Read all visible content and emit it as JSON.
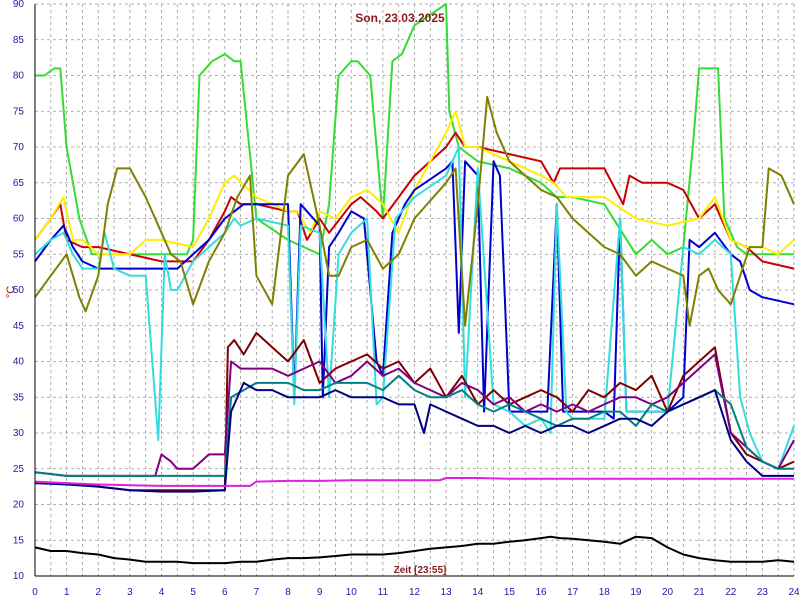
{
  "chart_data": {
    "type": "line",
    "title": "Son, 23.03.2025",
    "xlabel": "Zeit [23:55]",
    "ylabel": "°C",
    "xlim": [
      0,
      24
    ],
    "ylim": [
      10,
      90
    ],
    "xticks": [
      "0",
      "1",
      "2",
      "3",
      "4",
      "5",
      "6",
      "7",
      "8",
      "9",
      "10",
      "11",
      "12",
      "13",
      "14",
      "15",
      "16",
      "17",
      "18",
      "19",
      "20",
      "21",
      "22",
      "23",
      "24"
    ],
    "yticks": [
      "10",
      "15",
      "20",
      "25",
      "30",
      "35",
      "40",
      "45",
      "50",
      "55",
      "60",
      "65",
      "70",
      "75",
      "80",
      "85",
      "90"
    ],
    "grid": true,
    "series": [
      {
        "color": "#33dd33",
        "x": [
          0,
          0.3,
          0.6,
          0.8,
          1.0,
          1.4,
          1.8,
          2.0,
          2.5,
          3,
          4,
          4.8,
          5.0,
          5.2,
          5.6,
          6.0,
          6.3,
          6.5,
          7.0,
          8,
          9,
          9.3,
          9.6,
          10,
          10.2,
          10.6,
          11.0,
          11.3,
          11.6,
          12,
          13,
          13.1,
          13.4,
          14,
          15,
          15.5,
          16,
          16.5,
          17,
          18,
          19,
          19.5,
          20,
          20.5,
          20.8,
          21,
          21.6,
          21.8,
          22.2,
          22.5,
          23,
          23.5,
          24
        ],
        "y": [
          80,
          80,
          81,
          81,
          70,
          60,
          55,
          55,
          55,
          55,
          55,
          55,
          57,
          80,
          82,
          83,
          82,
          82,
          60,
          57,
          55,
          62,
          80,
          82,
          82,
          80,
          60,
          82,
          83,
          87,
          90,
          75,
          70,
          68,
          67,
          66,
          65,
          63,
          63,
          62,
          55,
          57,
          55,
          56,
          70,
          81,
          81,
          60,
          56,
          55,
          55,
          55,
          55
        ]
      },
      {
        "color": "#cc0000",
        "x": [
          0,
          0.5,
          0.8,
          1.0,
          1.5,
          2,
          3,
          4,
          5,
          5.5,
          6,
          6.2,
          6.5,
          7,
          8,
          8.3,
          8.6,
          9,
          9.3,
          10,
          10.3,
          10.8,
          11,
          11.5,
          12,
          13,
          13.3,
          13.6,
          14,
          15,
          16,
          16.4,
          16.6,
          17,
          18,
          18.6,
          18.8,
          19.2,
          20,
          20.5,
          21,
          21.5,
          22,
          22.5,
          23,
          24
        ],
        "y": [
          57,
          60,
          62,
          57,
          56,
          56,
          55,
          54,
          54,
          57,
          61,
          63,
          62,
          62,
          61,
          61,
          57,
          60,
          58,
          62,
          63,
          61,
          60,
          63,
          66,
          70,
          72,
          70,
          70,
          69,
          68,
          65,
          67,
          67,
          67,
          62,
          66,
          65,
          65,
          64,
          60,
          62,
          57,
          56,
          54,
          53
        ]
      },
      {
        "color": "#ffee00",
        "x": [
          0,
          0.5,
          0.9,
          1.2,
          1.5,
          2,
          3,
          3.5,
          4,
          5,
          5.5,
          6,
          6.3,
          7,
          8,
          8.3,
          8.7,
          9,
          9.5,
          10,
          10.5,
          11,
          11.5,
          12,
          12.5,
          13,
          13.3,
          13.6,
          14,
          15,
          16,
          16.4,
          16.8,
          17,
          18,
          19,
          20,
          21,
          21.5,
          22,
          22.5,
          23,
          23.5,
          24
        ],
        "y": [
          57,
          60,
          63,
          57,
          57,
          55,
          55,
          57,
          57,
          56,
          60,
          65,
          66,
          63,
          61,
          61,
          58,
          61,
          60,
          63,
          64,
          62,
          58,
          64,
          68,
          72,
          75,
          70,
          70,
          68,
          66,
          65,
          63,
          63,
          63,
          60,
          59,
          60,
          63,
          57,
          56,
          56,
          55,
          57
        ]
      },
      {
        "color": "#0000cc",
        "x": [
          0,
          0.5,
          0.9,
          1.2,
          1.5,
          2,
          3,
          4,
          4.5,
          5,
          5.5,
          6,
          6.3,
          6.6,
          7,
          7.5,
          8,
          8.2,
          8.4,
          9,
          9.1,
          9.3,
          9.6,
          10,
          10.4,
          10.8,
          11,
          11.3,
          11.7,
          12,
          13,
          13.2,
          13.4,
          13.6,
          14,
          14.2,
          14.5,
          14.7,
          15,
          15.5,
          16,
          16.2,
          16.5,
          16.7,
          17,
          17.5,
          18,
          18.3,
          18.5,
          18.7,
          19,
          19.5,
          20,
          20.5,
          20.7,
          21,
          21.5,
          22,
          22.3,
          22.6,
          23,
          24
        ],
        "y": [
          54,
          57,
          59,
          56,
          54,
          53,
          53,
          53,
          53,
          55,
          57,
          60,
          61,
          62,
          62,
          62,
          62,
          35,
          62,
          59,
          35,
          56,
          58,
          61,
          60,
          40,
          38,
          58,
          62,
          64,
          67,
          68,
          44,
          68,
          66,
          33,
          68,
          66,
          33,
          33,
          33,
          33,
          62,
          33,
          33,
          33,
          33,
          32,
          60,
          33,
          33,
          33,
          33,
          35,
          57,
          56,
          58,
          55,
          54,
          50,
          49,
          48
        ]
      },
      {
        "color": "#33dddd",
        "x": [
          0,
          0.5,
          0.9,
          1.2,
          1.5,
          2,
          2.2,
          2.5,
          3,
          3.5,
          3.9,
          4.1,
          4.3,
          4.5,
          5,
          5.5,
          6,
          6.3,
          6.5,
          7,
          8,
          8.2,
          8.4,
          9,
          9.3,
          9.6,
          10,
          10.5,
          10.8,
          11,
          11.4,
          12,
          13,
          13.2,
          13.4,
          13.6,
          14,
          14.5,
          15,
          15.5,
          16,
          16.3,
          16.5,
          16.8,
          17,
          18,
          18.5,
          18.7,
          19,
          20,
          20.5,
          21,
          21.5,
          22,
          22.3,
          22.6,
          23,
          23.5,
          24
        ],
        "y": [
          55,
          57,
          58,
          55,
          53,
          53,
          58,
          53,
          52,
          52,
          29,
          55,
          50,
          50,
          54,
          56,
          58,
          60,
          59,
          60,
          59,
          34,
          59,
          58,
          35,
          55,
          58,
          60,
          34,
          35,
          60,
          63,
          66,
          68,
          70,
          35,
          67,
          34,
          33,
          31,
          32,
          30,
          62,
          33,
          32,
          32,
          60,
          33,
          33,
          33,
          56,
          55,
          57,
          55,
          35,
          30,
          26,
          25,
          31
        ]
      },
      {
        "color": "#808000",
        "x": [
          0,
          0.5,
          1,
          1.4,
          1.6,
          2,
          2.3,
          2.6,
          3,
          3.5,
          4,
          4.3,
          4.6,
          5,
          5.5,
          6,
          6.4,
          6.8,
          7,
          7.5,
          8,
          8.5,
          9,
          9.3,
          9.6,
          10,
          10.5,
          11,
          11.5,
          12,
          13,
          13.3,
          13.6,
          14,
          14.3,
          14.6,
          15,
          15.5,
          16,
          16.5,
          17,
          17.5,
          18,
          18.5,
          19,
          19.5,
          20,
          20.5,
          20.7,
          21,
          21.3,
          21.6,
          22,
          22.3,
          22.6,
          23,
          23.2,
          23.6,
          24
        ],
        "y": [
          49,
          52,
          55,
          49,
          47,
          52,
          62,
          67,
          67,
          63,
          58,
          55,
          54,
          48,
          54,
          58,
          63,
          66,
          52,
          48,
          66,
          69,
          59,
          52,
          52,
          56,
          57,
          53,
          55,
          60,
          65,
          67,
          45,
          62,
          77,
          72,
          68,
          66,
          64,
          63,
          60,
          58,
          56,
          55,
          52,
          54,
          53,
          52,
          45,
          52,
          53,
          50,
          48,
          52,
          56,
          56,
          67,
          66,
          62
        ]
      },
      {
        "color": "#800000",
        "x": [
          0,
          1,
          2,
          3,
          4,
          5,
          6,
          6.1,
          6.3,
          6.6,
          7,
          7.5,
          8,
          8.5,
          9,
          9.5,
          10,
          10.5,
          11,
          11.5,
          12,
          12.5,
          13,
          13.5,
          14,
          14.5,
          15,
          15.5,
          16,
          16.5,
          17,
          17.5,
          18,
          18.5,
          19,
          19.5,
          20,
          20.5,
          21,
          21.5,
          22,
          22.5,
          23,
          23.5,
          24
        ],
        "y": [
          23,
          23,
          22.5,
          22,
          22,
          22,
          22,
          42,
          43,
          41,
          44,
          42,
          40,
          43,
          37,
          39,
          40,
          41,
          39,
          40,
          37,
          39,
          35,
          38,
          34,
          36,
          34,
          35,
          36,
          35,
          33,
          36,
          35,
          37,
          36,
          38,
          33,
          38,
          40,
          42,
          30,
          27,
          26,
          25,
          26
        ]
      },
      {
        "color": "#800080",
        "x": [
          0,
          1,
          2,
          3,
          3.8,
          4,
          4.3,
          4.5,
          5,
          5.5,
          6,
          6.2,
          6.5,
          7,
          7.5,
          8,
          8.5,
          9,
          9.5,
          10,
          10.5,
          11,
          11.5,
          12,
          12.5,
          13,
          13.5,
          14,
          14.5,
          15,
          15.5,
          16,
          16.5,
          17,
          17.5,
          18,
          18.5,
          19,
          19.5,
          20,
          20.5,
          21,
          21.5,
          22,
          22.5,
          23,
          23.5,
          24
        ],
        "y": [
          24.5,
          24,
          24,
          24,
          24,
          27,
          26,
          25,
          25,
          27,
          27,
          40,
          39,
          39,
          39,
          38,
          39,
          40,
          37,
          38,
          40,
          38,
          39,
          37,
          36,
          35,
          37,
          36,
          34,
          35,
          33,
          34,
          33,
          34,
          33,
          34,
          35,
          35,
          34,
          35,
          37,
          39,
          41,
          30,
          28,
          26,
          25,
          29
        ]
      },
      {
        "color": "#008080",
        "x": [
          0,
          1,
          2,
          3,
          4,
          5,
          6,
          6.2,
          6.6,
          7,
          7.5,
          8,
          8.5,
          9,
          9.5,
          10,
          10.5,
          11,
          11.5,
          12,
          12.5,
          13,
          13.5,
          14,
          14.5,
          15,
          15.5,
          16,
          16.5,
          17,
          17.5,
          18,
          18.5,
          19,
          19.5,
          20,
          20.5,
          21,
          21.5,
          22,
          22.5,
          23,
          23.5,
          24
        ],
        "y": [
          24.5,
          24,
          24,
          24,
          24,
          24,
          24,
          35,
          36,
          37,
          37,
          37,
          36,
          36,
          37,
          37,
          37,
          36,
          38,
          36,
          35,
          35,
          36,
          34,
          33,
          34,
          33,
          32,
          31,
          32,
          32,
          33,
          33,
          31,
          34,
          33,
          34,
          35,
          36,
          34,
          28,
          26,
          25,
          25
        ]
      },
      {
        "color": "#000080",
        "x": [
          0,
          1,
          2,
          3,
          4,
          5,
          6,
          6.2,
          6.6,
          7,
          7.5,
          8,
          8.5,
          9,
          9.5,
          10,
          10.5,
          11,
          11.5,
          12,
          12.3,
          12.5,
          13,
          13.5,
          14,
          14.5,
          15,
          15.5,
          16,
          16.5,
          17,
          17.5,
          18,
          18.5,
          19,
          19.5,
          20,
          20.5,
          21,
          21.5,
          22,
          22.5,
          23,
          23.5,
          24
        ],
        "y": [
          23,
          22.8,
          22.5,
          22,
          21.8,
          21.8,
          22,
          33,
          37,
          36,
          36,
          35,
          35,
          35,
          36,
          35,
          35,
          35,
          34,
          34,
          30,
          34,
          33,
          32,
          31,
          31,
          30,
          31,
          30,
          31,
          31,
          30,
          31,
          32,
          32,
          31,
          33,
          34,
          35,
          36,
          29,
          26,
          24,
          24,
          24
        ]
      },
      {
        "color": "#dd22dd",
        "x": [
          0,
          1,
          2,
          3,
          4,
          5,
          6,
          6.8,
          7,
          8,
          9,
          10,
          11,
          12,
          12.8,
          13,
          14,
          15,
          16,
          17,
          18,
          19,
          20,
          21,
          22,
          23,
          24
        ],
        "y": [
          23.2,
          23,
          22.8,
          22.7,
          22.6,
          22.6,
          22.6,
          22.6,
          23.2,
          23.3,
          23.3,
          23.4,
          23.4,
          23.4,
          23.4,
          23.7,
          23.7,
          23.6,
          23.6,
          23.6,
          23.6,
          23.6,
          23.6,
          23.6,
          23.6,
          23.6,
          23.6
        ]
      },
      {
        "color": "#000000",
        "x": [
          0,
          0.5,
          1,
          1.5,
          2,
          2.5,
          3,
          3.5,
          4,
          4.5,
          5,
          5.5,
          6,
          6.5,
          7,
          7.5,
          8,
          8.5,
          9,
          9.5,
          10,
          10.5,
          11,
          11.5,
          12,
          12.5,
          13,
          13.5,
          14,
          14.5,
          15,
          15.5,
          16,
          16.3,
          16.6,
          17,
          17.5,
          18,
          18.5,
          19,
          19.5,
          20,
          20.5,
          21,
          21.5,
          22,
          22.5,
          23,
          23.5,
          24
        ],
        "y": [
          14,
          13.5,
          13.5,
          13.2,
          13,
          12.5,
          12.3,
          12,
          12,
          12,
          11.8,
          11.8,
          11.8,
          12,
          12,
          12.3,
          12.5,
          12.5,
          12.6,
          12.8,
          13,
          13,
          13,
          13.2,
          13.5,
          13.8,
          14,
          14.2,
          14.5,
          14.5,
          14.8,
          15,
          15.3,
          15.5,
          15.3,
          15.2,
          15,
          14.8,
          14.5,
          15.5,
          15.3,
          14,
          13,
          12.5,
          12.2,
          12,
          12,
          12,
          12.2,
          12
        ]
      }
    ]
  }
}
